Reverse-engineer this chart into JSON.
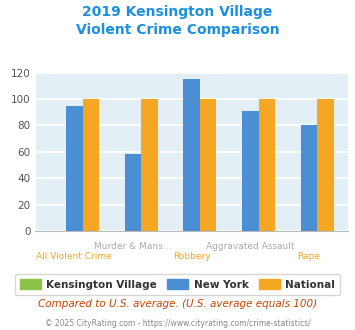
{
  "title_line1": "2019 Kensington Village",
  "title_line2": "Violent Crime Comparison",
  "groups": [
    {
      "label_top": "",
      "label_bottom": "All Violent Crime",
      "kv": 0,
      "ny": 95,
      "nat": 100
    },
    {
      "label_top": "Murder & Mans...",
      "label_bottom": "",
      "kv": 0,
      "ny": 58,
      "nat": 100
    },
    {
      "label_top": "",
      "label_bottom": "Robbery",
      "kv": 0,
      "ny": 115,
      "nat": 100
    },
    {
      "label_top": "Aggravated Assault",
      "label_bottom": "",
      "kv": 0,
      "ny": 91,
      "nat": 100
    },
    {
      "label_top": "",
      "label_bottom": "Rape",
      "kv": 0,
      "ny": 80,
      "nat": 100
    }
  ],
  "color_kv": "#8BC34A",
  "color_ny": "#4A8FD4",
  "color_nat": "#F5A623",
  "title_color": "#1B8FE0",
  "label_top_color": "#AAAAAA",
  "label_bottom_color": "#F5A623",
  "ylim": [
    0,
    120
  ],
  "yticks": [
    0,
    20,
    40,
    60,
    80,
    100,
    120
  ],
  "background_color": "#E3EFF5",
  "grid_color": "#FFFFFF",
  "legend_kv": "Kensington Village",
  "legend_ny": "New York",
  "legend_nat": "National",
  "footnote1": "Compared to U.S. average. (U.S. average equals 100)",
  "footnote2": "© 2025 CityRating.com - https://www.cityrating.com/crime-statistics/",
  "footnote1_color": "#CC4400",
  "footnote2_color": "#888888",
  "bar_width": 0.28
}
